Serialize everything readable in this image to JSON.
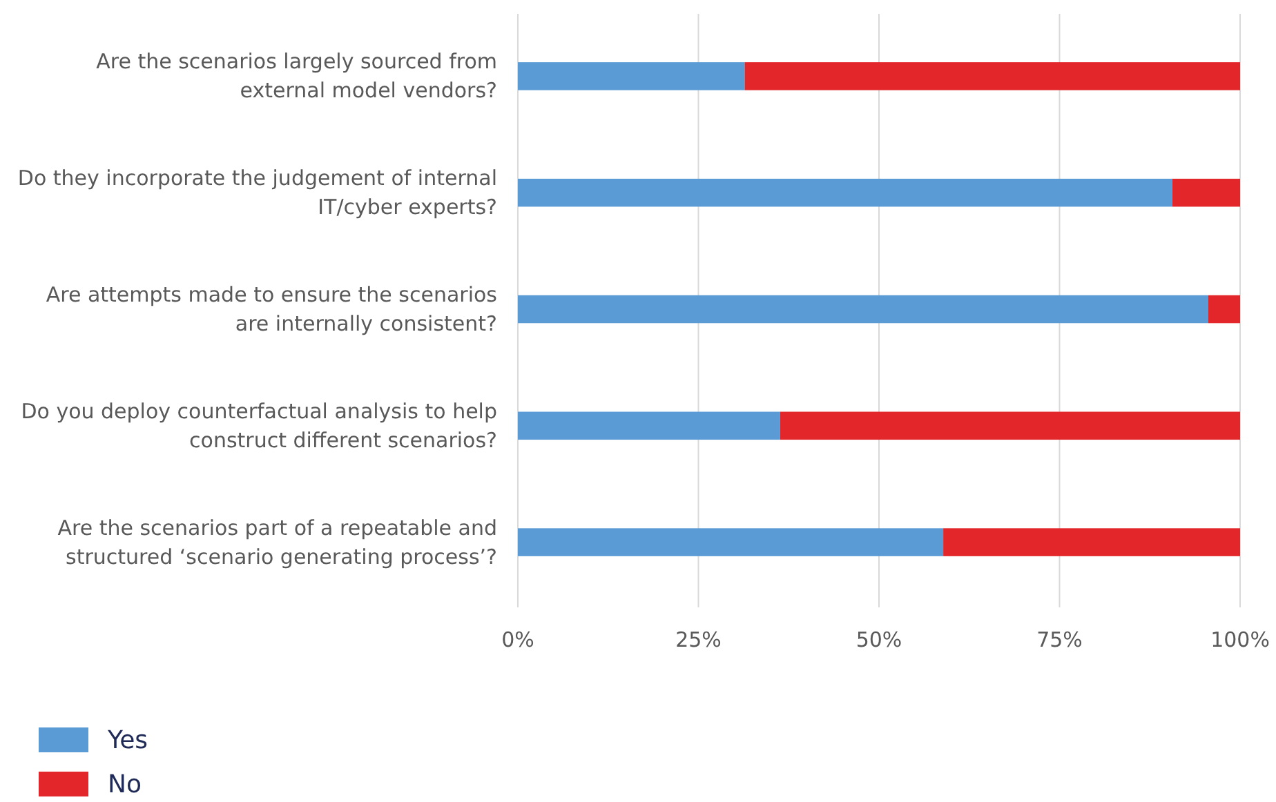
{
  "chart_data": {
    "type": "bar",
    "orientation": "horizontal",
    "stacked": true,
    "categories": [
      "Are the scenarios largely sourced from external model vendors?",
      "Do they incorporate the judgement of internal IT/cyber experts?",
      "Are attempts made to ensure the scenarios are internally consistent?",
      "Do you deploy counterfactual analysis to help construct different scenarios?",
      "Are the scenarios part of a repeatable and structured ‘scenario generating process’?"
    ],
    "series": [
      {
        "name": "Yes",
        "color": "#5b9bd5",
        "values": [
          31.4,
          90.6,
          95.6,
          36.3,
          58.9
        ]
      },
      {
        "name": "No",
        "color": "#e3262a",
        "values": [
          68.6,
          9.4,
          4.4,
          63.7,
          41.1
        ]
      }
    ],
    "xlim": [
      0,
      100
    ],
    "xticks": [
      {
        "value": 0,
        "label": "0%"
      },
      {
        "value": 25,
        "label": "25%"
      },
      {
        "value": 50,
        "label": "50%"
      },
      {
        "value": 75,
        "label": "75%"
      },
      {
        "value": 100,
        "label": "100%"
      }
    ],
    "grid": "x",
    "legend": "bottom left"
  }
}
